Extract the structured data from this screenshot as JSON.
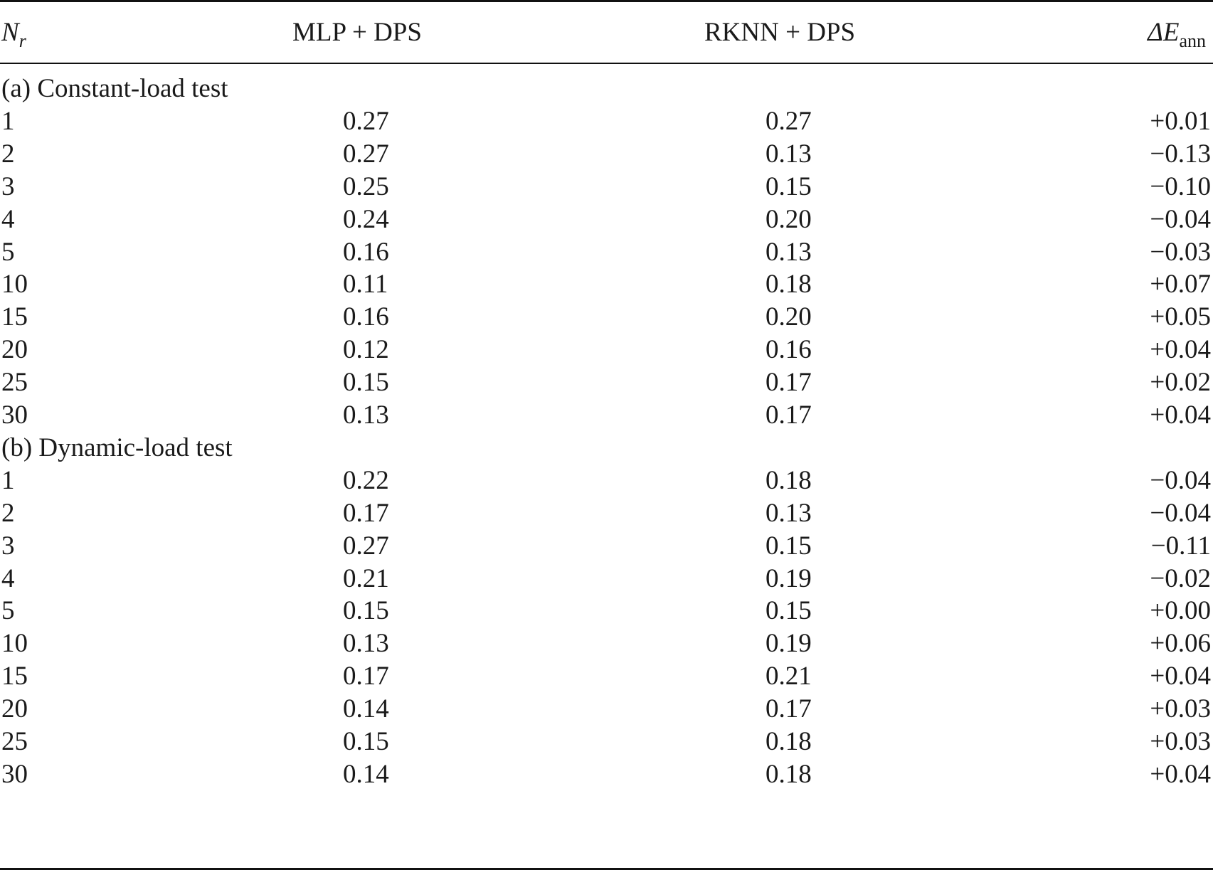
{
  "header": {
    "nr_main": "N",
    "nr_sub": "r",
    "mlp": "MLP + DPS",
    "rknn": "RKNN + DPS",
    "delta_main": "ΔE",
    "delta_sub": "ann"
  },
  "sections": [
    {
      "label": "(a) Constant-load test",
      "rows": [
        {
          "nr": "1",
          "mlp": "0.27",
          "rknn": "0.27",
          "delta": "+0.01"
        },
        {
          "nr": "2",
          "mlp": "0.27",
          "rknn": "0.13",
          "delta": "−0.13"
        },
        {
          "nr": "3",
          "mlp": "0.25",
          "rknn": "0.15",
          "delta": "−0.10"
        },
        {
          "nr": "4",
          "mlp": "0.24",
          "rknn": "0.20",
          "delta": "−0.04"
        },
        {
          "nr": "5",
          "mlp": "0.16",
          "rknn": "0.13",
          "delta": "−0.03"
        },
        {
          "nr": "10",
          "mlp": "0.11",
          "rknn": "0.18",
          "delta": "+0.07"
        },
        {
          "nr": "15",
          "mlp": "0.16",
          "rknn": "0.20",
          "delta": "+0.05"
        },
        {
          "nr": "20",
          "mlp": "0.12",
          "rknn": "0.16",
          "delta": "+0.04"
        },
        {
          "nr": "25",
          "mlp": "0.15",
          "rknn": "0.17",
          "delta": "+0.02"
        },
        {
          "nr": "30",
          "mlp": "0.13",
          "rknn": "0.17",
          "delta": "+0.04"
        }
      ]
    },
    {
      "label": "(b) Dynamic-load test",
      "rows": [
        {
          "nr": "1",
          "mlp": "0.22",
          "rknn": "0.18",
          "delta": "−0.04"
        },
        {
          "nr": "2",
          "mlp": "0.17",
          "rknn": "0.13",
          "delta": "−0.04"
        },
        {
          "nr": "3",
          "mlp": "0.27",
          "rknn": "0.15",
          "delta": "−0.11"
        },
        {
          "nr": "4",
          "mlp": "0.21",
          "rknn": "0.19",
          "delta": "−0.02"
        },
        {
          "nr": "5",
          "mlp": "0.15",
          "rknn": "0.15",
          "delta": "+0.00"
        },
        {
          "nr": "10",
          "mlp": "0.13",
          "rknn": "0.19",
          "delta": "+0.06"
        },
        {
          "nr": "15",
          "mlp": "0.17",
          "rknn": "0.21",
          "delta": "+0.04"
        },
        {
          "nr": "20",
          "mlp": "0.14",
          "rknn": "0.17",
          "delta": "+0.03"
        },
        {
          "nr": "25",
          "mlp": "0.15",
          "rknn": "0.18",
          "delta": "+0.03"
        },
        {
          "nr": "30",
          "mlp": "0.14",
          "rknn": "0.18",
          "delta": "+0.04"
        }
      ]
    }
  ]
}
